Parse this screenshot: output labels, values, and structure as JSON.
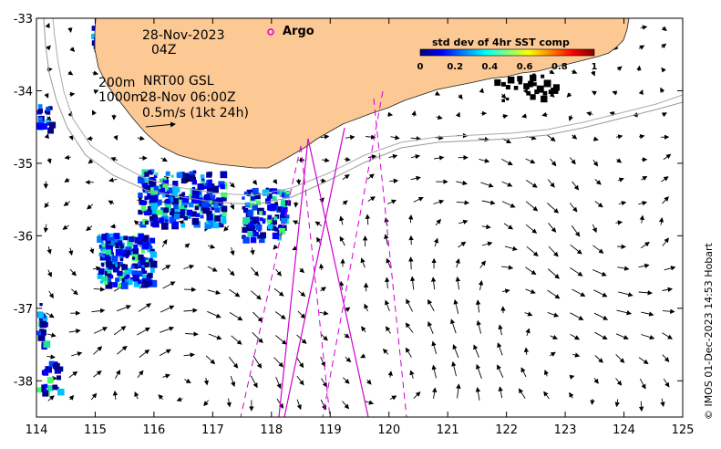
{
  "map": {
    "date_label": "28-Nov-2023",
    "time_label": "04Z",
    "depth_200": "200m",
    "depth_1000": "1000m",
    "current_source": "NRT00 GSL",
    "current_time": "28-Nov 06:00Z",
    "scale_label": "0.5m/s (1kt 24h)",
    "argo_label": "Argo",
    "argo_color": "#e000e0",
    "track_color": "#d000d0",
    "land_color": "#fcc893",
    "credit": "© IMOS 01-Dec-2023 14:53 Hobart",
    "lon_ticks": [
      "114",
      "115",
      "116",
      "117",
      "118",
      "119",
      "120",
      "121",
      "122",
      "123",
      "124",
      "125"
    ],
    "lat_ticks": [
      "-33",
      "-34",
      "-35",
      "-36",
      "-37",
      "-38"
    ],
    "colorbar": {
      "title": "std dev of 4hr SST comp",
      "ticks": [
        "0",
        "0.2",
        "0.4",
        "0.6",
        "0.8",
        "1"
      ],
      "colors": [
        "#00007f",
        "#0000ff",
        "#0080ff",
        "#00ffff",
        "#7fff7f",
        "#ffff00",
        "#ff8000",
        "#ff0000",
        "#7f0000"
      ]
    },
    "lon_range": [
      114,
      125
    ],
    "lat_range": [
      -38.5,
      -33
    ]
  }
}
